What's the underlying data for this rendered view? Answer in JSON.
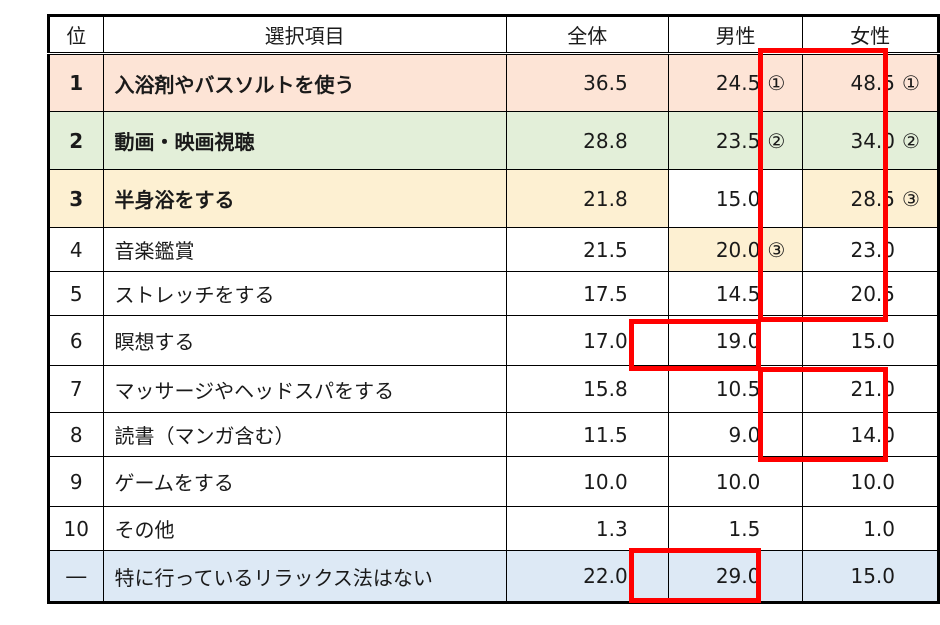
{
  "table": {
    "headers": {
      "rank": "位",
      "item": "選択項目",
      "all": "全体",
      "men": "男性",
      "women": "女性"
    },
    "rows": [
      {
        "rank": "1",
        "item": "入浴剤やバスソルトを使う",
        "all": "36.5",
        "men": "24.5",
        "men_mark": "①",
        "women": "48.5",
        "women_mark": "①",
        "bold": true,
        "bg": "#fde4d6"
      },
      {
        "rank": "2",
        "item": "動画・映画視聴",
        "all": "28.8",
        "men": "23.5",
        "men_mark": "②",
        "women": "34.0",
        "women_mark": "②",
        "bold": true,
        "bg": "#e3efd9"
      },
      {
        "rank": "3",
        "item": "半身浴をする",
        "all": "21.8",
        "men": "15.0",
        "men_mark": "",
        "women": "28.5",
        "women_mark": "③",
        "bold": true,
        "bg": "#fdf0d2"
      },
      {
        "rank": "4",
        "item": "音楽鑑賞",
        "all": "21.5",
        "men": "20.0",
        "men_mark": "③",
        "women": "23.0",
        "women_mark": "",
        "bold": false,
        "bg": "#ffffff"
      },
      {
        "rank": "5",
        "item": "ストレッチをする",
        "all": "17.5",
        "men": "14.5",
        "men_mark": "",
        "women": "20.5",
        "women_mark": "",
        "bold": false,
        "bg": "#ffffff"
      },
      {
        "rank": "6",
        "item": "瞑想する",
        "all": "17.0",
        "men": "19.0",
        "men_mark": "",
        "women": "15.0",
        "women_mark": "",
        "bold": false,
        "bg": "#ffffff"
      },
      {
        "rank": "7",
        "item": "マッサージやヘッドスパをする",
        "all": "15.8",
        "men": "10.5",
        "men_mark": "",
        "women": "21.0",
        "women_mark": "",
        "bold": false,
        "bg": "#ffffff"
      },
      {
        "rank": "8",
        "item": "読書（マンガ含む）",
        "all": "11.5",
        "men": "9.0",
        "men_mark": "",
        "women": "14.0",
        "women_mark": "",
        "bold": false,
        "bg": "#ffffff"
      },
      {
        "rank": "9",
        "item": "ゲームをする",
        "all": "10.0",
        "men": "10.0",
        "men_mark": "",
        "women": "10.0",
        "women_mark": "",
        "bold": false,
        "bg": "#ffffff"
      },
      {
        "rank": "10",
        "item": "その他",
        "all": "1.3",
        "men": "1.5",
        "men_mark": "",
        "women": "1.0",
        "women_mark": "",
        "bold": false,
        "bg": "#ffffff"
      },
      {
        "rank": "―",
        "item": "特に行っているリラックス法はない",
        "all": "22.0",
        "men": "29.0",
        "men_mark": "",
        "women": "15.0",
        "women_mark": "",
        "bold": false,
        "bg": "#dde9f5"
      }
    ],
    "cell_highlights": {
      "men_rank3_bg": "#fdf0d2",
      "row3_men_bg": "#ffffff"
    },
    "highlight_color": "#ff0000"
  }
}
